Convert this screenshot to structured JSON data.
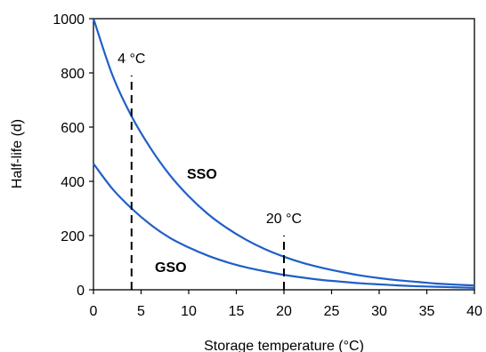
{
  "chart_data": {
    "type": "line",
    "title": "",
    "xlabel": "Storage temperature (°C)",
    "ylabel": "Half-life (d)",
    "xlim": [
      0,
      40
    ],
    "ylim": [
      0,
      1000
    ],
    "xticks": [
      0,
      5,
      10,
      15,
      20,
      25,
      30,
      35,
      40
    ],
    "yticks": [
      0,
      200,
      400,
      600,
      800,
      1000
    ],
    "grid": false,
    "legend": "none",
    "x": [
      0,
      2,
      4,
      6,
      8,
      10,
      12,
      14,
      16,
      18,
      20,
      22,
      24,
      26,
      28,
      30,
      32,
      34,
      36,
      38,
      40
    ],
    "series": [
      {
        "name": "SSO",
        "color": "#1f5fc8",
        "values": [
          1000,
          791,
          640,
          522,
          424,
          345,
          280,
          228,
          185,
          150,
          122,
          99,
          81,
          66,
          53,
          43,
          35,
          29,
          23,
          19,
          16
        ]
      },
      {
        "name": "GSO",
        "color": "#1f5fc8",
        "values": [
          465,
          372,
          300,
          240,
          192,
          156,
          126,
          102,
          83,
          68,
          55,
          45,
          36,
          30,
          24,
          20,
          16,
          13,
          11,
          9,
          7
        ]
      }
    ],
    "annotations": [
      {
        "label": "4 °C",
        "x": 4,
        "y_from": 0,
        "y_to": 790
      },
      {
        "label": "20 °C",
        "x": 20,
        "y_from": 0,
        "y_to": 200
      }
    ]
  }
}
